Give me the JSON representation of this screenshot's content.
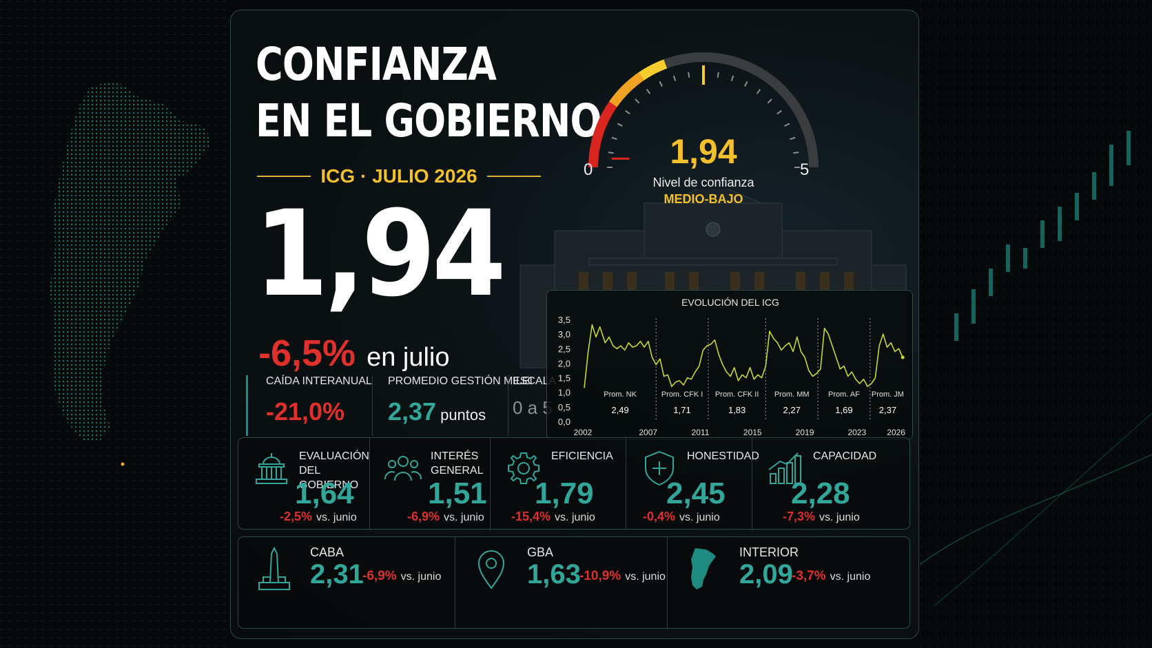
{
  "header": {
    "title_line1": "CONFIANZA",
    "title_line2": "EN EL GOBIERNO",
    "subtitle": "ICG · JULIO 2026"
  },
  "headline": {
    "value": "1,94",
    "change": "-6,5%",
    "change_label": "en julio"
  },
  "gauge": {
    "value": "1,94",
    "value_num": 1.94,
    "min": "0",
    "max": "5",
    "caption": "Nivel de confianza",
    "level": "MEDIO-BAJO",
    "colors": {
      "low": "#d8251f",
      "mid": "#f0a322",
      "high": "#f5cd2e",
      "track": "#3a3d3e"
    }
  },
  "stats": {
    "interannual_label": "CAÍDA INTERANUAL",
    "interannual_value": "-21,0%",
    "average_label": "PROMEDIO GESTIÓN MILEI",
    "average_value": "2,37",
    "average_unit": "puntos",
    "scale_label": "ESCALA",
    "scale_value": "0 a 5"
  },
  "chart_data": {
    "type": "line",
    "title": "EVOLUCIÓN DEL ICG",
    "ylim": [
      0,
      3.5
    ],
    "yticks": [
      "3,5",
      "3,0",
      "2,5",
      "2,0",
      "1,5",
      "1,0",
      "0,5",
      "0,0"
    ],
    "xticks": [
      "2002",
      "2007",
      "2011",
      "2015",
      "2019",
      "2023",
      "2026"
    ],
    "grid": false,
    "series": [
      {
        "color": "#c8d832",
        "x": [
          2002.0,
          2002.3,
          2002.6,
          2002.9,
          2003.2,
          2003.6,
          2003.9,
          2004.2,
          2004.5,
          2004.8,
          2005.1,
          2005.4,
          2005.7,
          2006.0,
          2006.3,
          2006.6,
          2006.9,
          2007.2,
          2007.5,
          2007.8,
          2008.1,
          2008.4,
          2008.7,
          2009.0,
          2009.3,
          2009.6,
          2009.9,
          2010.2,
          2010.5,
          2010.8,
          2011.1,
          2011.4,
          2011.7,
          2012.0,
          2012.3,
          2012.6,
          2012.9,
          2013.2,
          2013.5,
          2013.8,
          2014.1,
          2014.4,
          2014.7,
          2015.0,
          2015.3,
          2015.6,
          2015.9,
          2016.2,
          2016.5,
          2016.8,
          2017.1,
          2017.4,
          2017.7,
          2018.0,
          2018.3,
          2018.6,
          2018.9,
          2019.2,
          2019.5,
          2019.8,
          2020.1,
          2020.4,
          2020.7,
          2021.0,
          2021.3,
          2021.6,
          2021.9,
          2022.2,
          2022.5,
          2022.8,
          2023.1,
          2023.4,
          2023.7,
          2024.0,
          2024.3,
          2024.6,
          2024.9,
          2025.2,
          2025.5,
          2025.8,
          2026.1,
          2026.4
        ],
        "values": [
          1.15,
          2.4,
          3.32,
          2.9,
          3.25,
          2.7,
          2.9,
          2.6,
          2.5,
          2.6,
          2.45,
          2.7,
          2.55,
          2.6,
          2.75,
          2.55,
          2.75,
          2.2,
          1.95,
          2.15,
          1.55,
          1.6,
          1.2,
          1.35,
          1.4,
          1.25,
          1.5,
          1.45,
          1.7,
          1.9,
          2.45,
          2.6,
          2.65,
          2.8,
          2.3,
          1.95,
          1.7,
          1.55,
          1.85,
          1.4,
          1.6,
          1.5,
          1.85,
          1.45,
          1.6,
          1.5,
          1.9,
          3.1,
          2.85,
          2.7,
          2.45,
          2.6,
          2.7,
          2.4,
          2.9,
          2.4,
          2.2,
          1.75,
          1.55,
          1.65,
          1.8,
          3.2,
          3.0,
          2.6,
          2.2,
          1.8,
          1.9,
          1.55,
          1.7,
          1.45,
          1.3,
          1.45,
          1.2,
          1.3,
          1.5,
          2.6,
          3.0,
          2.55,
          2.7,
          2.4,
          2.5,
          2.2
        ]
      }
    ],
    "periods": [
      {
        "label": "Prom. NK",
        "value": "2,49",
        "start": 2002
      },
      {
        "label": "Prom. CFK I",
        "value": "1,71",
        "start": 2007.5
      },
      {
        "label": "Prom. CFK II",
        "value": "1,83",
        "start": 2011.5
      },
      {
        "label": "Prom. MM",
        "value": "2,27",
        "start": 2015.9
      },
      {
        "label": "Prom. AF",
        "value": "1,69",
        "start": 2019.9
      },
      {
        "label": "Prom. JM",
        "value": "2,37",
        "start": 2023.9
      }
    ]
  },
  "metrics": [
    {
      "name1": "EVALUACIÓN",
      "name2": "DEL GOBIERNO",
      "value": "1,64",
      "change": "-2,5%",
      "vs": "vs. junio",
      "icon": "government-building-icon"
    },
    {
      "name1": "INTERÉS",
      "name2": "GENERAL",
      "value": "1,51",
      "change": "-6,9%",
      "vs": "vs. junio",
      "icon": "people-group-icon"
    },
    {
      "name1": "EFICIENCIA",
      "name2": "",
      "value": "1,79",
      "change": "-15,4%",
      "vs": "vs. junio",
      "icon": "gear-icon"
    },
    {
      "name1": "HONESTIDAD",
      "name2": "",
      "value": "2,45",
      "change": "-0,4%",
      "vs": "vs. junio",
      "icon": "shield-cross-icon"
    },
    {
      "name1": "CAPACIDAD",
      "name2": "",
      "value": "2,28",
      "change": "-7,3%",
      "vs": "vs. junio",
      "icon": "bar-chart-icon"
    }
  ],
  "regions": [
    {
      "name": "CABA",
      "value": "2,31",
      "change": "-6,9%",
      "vs": "vs. junio",
      "icon": "obelisk-icon"
    },
    {
      "name": "GBA",
      "value": "1,63",
      "change": "-10,9%",
      "vs": "vs. junio",
      "icon": "map-pin-icon"
    },
    {
      "name": "INTERIOR",
      "value": "2,09",
      "change": "-3,7%",
      "vs": "vs. junio",
      "icon": "argentina-map-icon"
    }
  ]
}
